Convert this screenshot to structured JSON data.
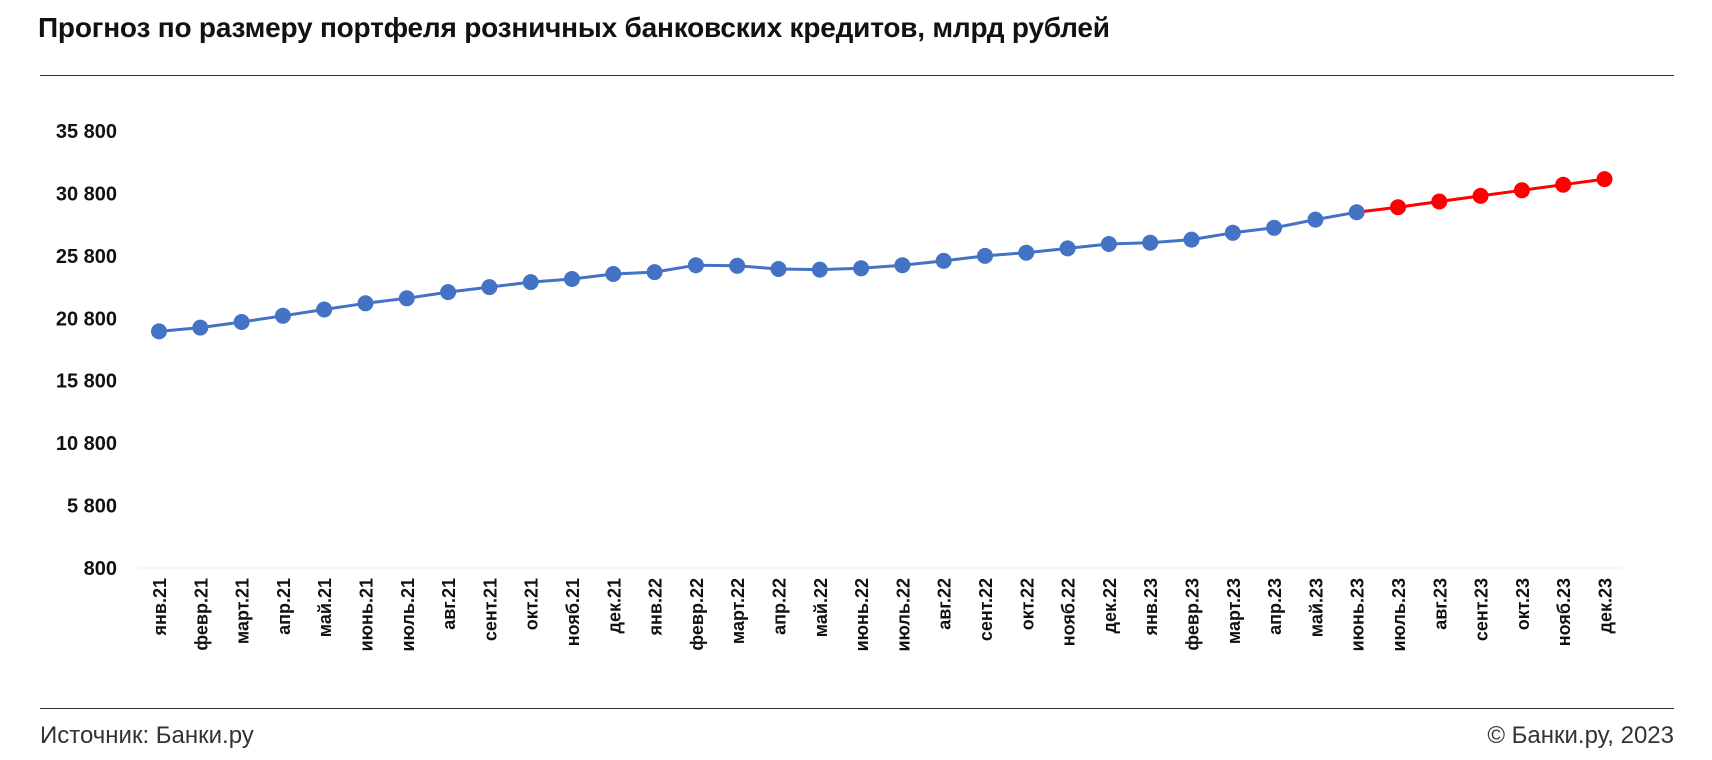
{
  "title": "Прогноз по размеру портфеля розничных банковских кредитов, млрд рублей",
  "footer": {
    "source": "Источник: Банки.ру",
    "copyright": "© Банки.ру, 2023"
  },
  "colors": {
    "actual": "#4472C4",
    "forecast": "#FF0000"
  },
  "chart_data": {
    "type": "line",
    "title": "",
    "xlabel": "",
    "ylabel": "",
    "ylim": [
      800,
      35800
    ],
    "yticks": [
      800,
      5800,
      10800,
      15800,
      20800,
      25800,
      30800,
      35800
    ],
    "ytick_labels": [
      "800",
      "5 800",
      "10 800",
      "15 800",
      "20 800",
      "25 800",
      "30 800",
      "35 800"
    ],
    "grid": false,
    "legend": "none",
    "categories": [
      "янв.21",
      "февр.21",
      "март.21",
      "апр.21",
      "май.21",
      "июнь.21",
      "июль.21",
      "авг.21",
      "сент.21",
      "окт.21",
      "нояб.21",
      "дек.21",
      "янв.22",
      "февр.22",
      "март.22",
      "апр.22",
      "май.22",
      "июнь.22",
      "июль.22",
      "авг.22",
      "сент.22",
      "окт.22",
      "нояб.22",
      "дек.22",
      "янв.23",
      "февр.23",
      "март.23",
      "апр.23",
      "май.23",
      "июнь.23",
      "июль.23",
      "авг.23",
      "сент.23",
      "окт.23",
      "нояб.23",
      "дек.23"
    ],
    "series": [
      {
        "values": [
          19750,
          20050,
          20500,
          21000,
          21500,
          22000,
          22400,
          22900,
          23300,
          23700,
          23950,
          24350,
          24500,
          25050,
          25000,
          24750,
          24700,
          24800,
          25050,
          25400,
          25800,
          26050,
          26400,
          26750,
          26850,
          27100,
          27650,
          28050,
          28700,
          29300,
          null,
          null,
          null,
          null,
          null,
          null
        ]
      },
      {
        "values": [
          null,
          null,
          null,
          null,
          null,
          null,
          null,
          null,
          null,
          null,
          null,
          null,
          null,
          null,
          null,
          null,
          null,
          null,
          null,
          null,
          null,
          null,
          null,
          null,
          null,
          null,
          null,
          null,
          null,
          29300,
          29700,
          30150,
          30600,
          31050,
          31500,
          31950
        ]
      }
    ]
  }
}
